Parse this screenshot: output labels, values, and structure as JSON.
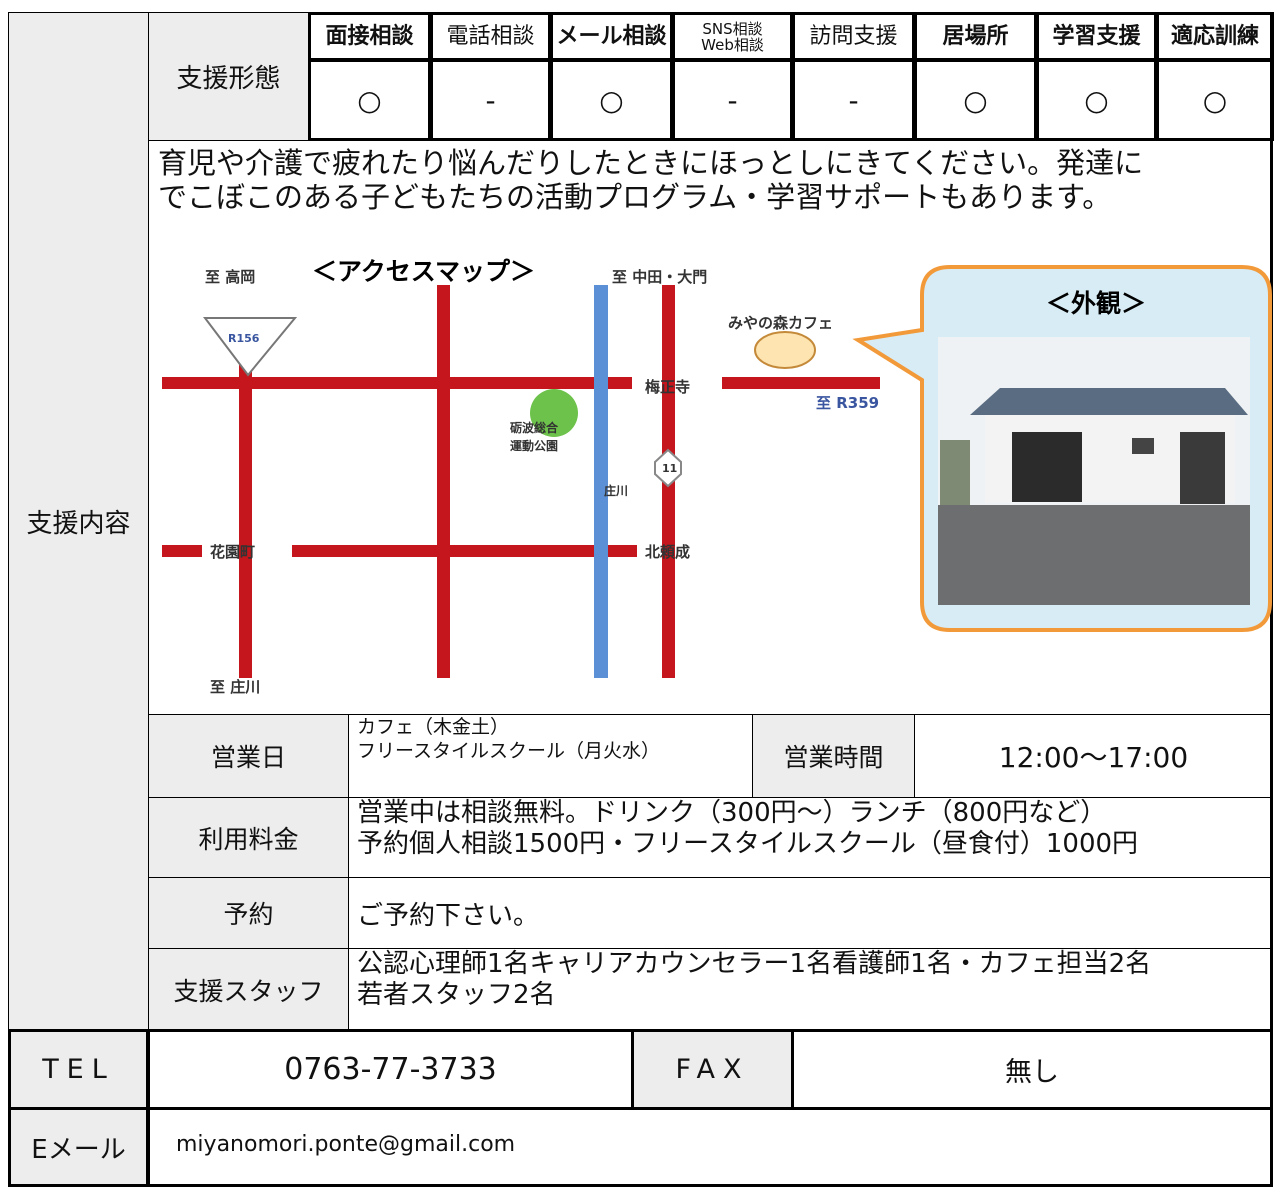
{
  "support_label": "支援内容",
  "forms": {
    "label": "支援形態",
    "items": [
      {
        "name": "面接相談",
        "mark": "○"
      },
      {
        "name": "電話相談",
        "mark": "-"
      },
      {
        "name": "メール相談",
        "mark": "○"
      },
      {
        "name": "SNS相談\nWeb相談",
        "mark": "-"
      },
      {
        "name": "訪問支援",
        "mark": "-"
      },
      {
        "name": "居場所",
        "mark": "○"
      },
      {
        "name": "学習支援",
        "mark": "○"
      },
      {
        "name": "適応訓練",
        "mark": "○"
      }
    ]
  },
  "description": [
    "育児や介護で疲れたり悩んだりしたときにほっとしにきてください。発達に",
    "でこぼこのある子どもたちの活動プログラム・学習サポートもあります。"
  ],
  "map": {
    "title": "＜アクセスマップ＞",
    "photo_title": "＜外観＞",
    "labels": [
      "至 高岡",
      "R156",
      "至 中田・大門",
      "みやの森カフェ",
      "梅正寺",
      "至 R359",
      "砺波総合",
      "運動公園",
      "11",
      "庄川",
      "花園町",
      "北頼成",
      "至 庄川"
    ]
  },
  "rows": [
    {
      "label": "営業日",
      "value": [
        "カフェ（木金土）",
        "フリースタイルスクール（月火水）"
      ],
      "label2": "営業時間",
      "value2": "12:00〜17:00"
    },
    {
      "label": "利用料金",
      "value": [
        "営業中は相談無料。ドリンク（300円〜）ランチ（800円など）",
        "予約個人相談1500円・フリースタイルスクール（昼食付）1000円"
      ]
    },
    {
      "label": "予約",
      "value": "ご予約下さい。"
    },
    {
      "label": "支援スタッフ",
      "value": [
        "公認心理師1名キャリアカウンセラー1名看護師1名・カフェ担当2名",
        "若者スタッフ2名"
      ]
    }
  ],
  "contact": {
    "tel_label": "TEL",
    "tel": "0763-77-3733",
    "fax_label": "FAX",
    "fax": "無し",
    "email_label": "Eメール",
    "email": "miyanomori.ponte@gmail.com"
  }
}
